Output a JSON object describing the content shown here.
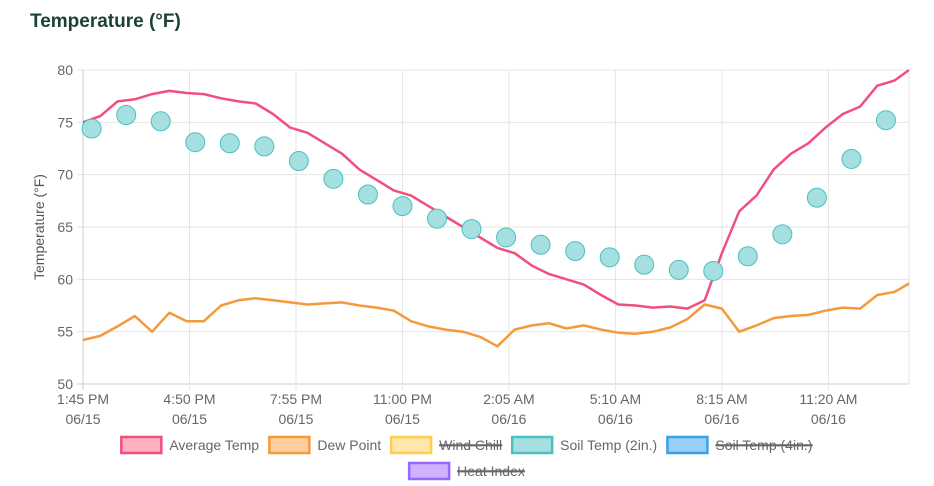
{
  "title": "Temperature (°F)",
  "chart_data": {
    "type": "line",
    "title": "Temperature (°F)",
    "ylabel": "Temperature (°F)",
    "xlabel": "",
    "ylim": [
      50,
      80
    ],
    "yticks": [
      "50",
      "55",
      "60",
      "65",
      "70",
      "75",
      "80"
    ],
    "xlim": [
      "06/15 13:45",
      "06/16 13:40"
    ],
    "xticks": [
      {
        "time": "1:45 PM",
        "date": "06/15",
        "at": "06/15 13:45"
      },
      {
        "time": "4:50 PM",
        "date": "06/15",
        "at": "06/15 16:50"
      },
      {
        "time": "7:55 PM",
        "date": "06/15",
        "at": "06/15 19:55"
      },
      {
        "time": "11:00 PM",
        "date": "06/15",
        "at": "06/15 23:00"
      },
      {
        "time": "2:05 AM",
        "date": "06/16",
        "at": "06/16 02:05"
      },
      {
        "time": "5:10 AM",
        "date": "06/16",
        "at": "06/16 05:10"
      },
      {
        "time": "8:15 AM",
        "date": "06/16",
        "at": "06/16 08:15"
      },
      {
        "time": "11:20 AM",
        "date": "06/16",
        "at": "06/16 11:20"
      }
    ],
    "grid": true,
    "legend_position": "bottom",
    "line_times": [
      "06/15 13:45",
      "06/15 14:15",
      "06/15 14:45",
      "06/15 15:15",
      "06/15 15:45",
      "06/15 16:15",
      "06/15 16:45",
      "06/15 17:15",
      "06/15 17:45",
      "06/15 18:15",
      "06/15 18:45",
      "06/15 19:15",
      "06/15 19:45",
      "06/15 20:15",
      "06/15 20:45",
      "06/15 21:15",
      "06/15 21:45",
      "06/15 22:15",
      "06/15 22:45",
      "06/15 23:15",
      "06/15 23:45",
      "06/16 00:15",
      "06/16 00:45",
      "06/16 01:15",
      "06/16 01:45",
      "06/16 02:15",
      "06/16 02:45",
      "06/16 03:15",
      "06/16 03:45",
      "06/16 04:15",
      "06/16 04:45",
      "06/16 05:15",
      "06/16 05:45",
      "06/16 06:15",
      "06/16 06:45",
      "06/16 07:15",
      "06/16 07:45",
      "06/16 08:15",
      "06/16 08:45",
      "06/16 09:15",
      "06/16 09:45",
      "06/16 10:15",
      "06/16 10:45",
      "06/16 11:15",
      "06/16 11:45",
      "06/16 12:15",
      "06/16 12:45",
      "06/16 13:15",
      "06/16 13:40"
    ],
    "soil_times": [
      "06/15 14:00",
      "06/15 15:00",
      "06/15 16:00",
      "06/15 17:00",
      "06/15 18:00",
      "06/15 19:00",
      "06/15 20:00",
      "06/15 21:00",
      "06/15 22:00",
      "06/15 23:00",
      "06/16 00:00",
      "06/16 01:00",
      "06/16 02:00",
      "06/16 03:00",
      "06/16 04:00",
      "06/16 05:00",
      "06/16 06:00",
      "06/16 07:00",
      "06/16 08:00",
      "06/16 09:00",
      "06/16 10:00",
      "06/16 11:00",
      "06/16 12:00",
      "06/16 13:00"
    ],
    "series": [
      {
        "name": "Average Temp",
        "color": "#f0507c",
        "fill": "#ffb1c1",
        "kind": "line",
        "hidden": false,
        "values": [
          75.0,
          75.6,
          77.0,
          77.2,
          77.7,
          78.0,
          77.8,
          77.7,
          77.3,
          77.0,
          76.8,
          75.8,
          74.5,
          74.0,
          73.0,
          72.0,
          70.5,
          69.5,
          68.5,
          68.0,
          67.0,
          66.0,
          65.0,
          64.0,
          63.0,
          62.5,
          61.3,
          60.5,
          60.0,
          59.5,
          58.5,
          57.6,
          57.5,
          57.3,
          57.4,
          57.2,
          58.0,
          62.5,
          66.5,
          68.0,
          70.5,
          72.0,
          73.0,
          74.5,
          75.8,
          76.5,
          78.5,
          79.0,
          80.0
        ]
      },
      {
        "name": "Dew Point",
        "color": "#f5993d",
        "fill": "#ffcf9f",
        "kind": "line",
        "hidden": false,
        "values": [
          54.2,
          54.6,
          55.5,
          56.5,
          55.0,
          56.8,
          56.0,
          56.0,
          57.5,
          58.0,
          58.2,
          58.0,
          57.8,
          57.6,
          57.7,
          57.8,
          57.5,
          57.3,
          57.0,
          56.0,
          55.5,
          55.2,
          55.0,
          54.5,
          53.6,
          55.2,
          55.6,
          55.8,
          55.3,
          55.6,
          55.2,
          54.9,
          54.8,
          55.0,
          55.4,
          56.2,
          57.6,
          57.2,
          55.0,
          55.6,
          56.3,
          56.5,
          56.6,
          57.0,
          57.3,
          57.2,
          58.5,
          58.8,
          59.6
        ]
      },
      {
        "name": "Wind Chill",
        "color": "#ffcd56",
        "fill": "#ffe6aa",
        "kind": "line",
        "hidden": true,
        "values": []
      },
      {
        "name": "Soil Temp (2in.)",
        "color": "#4bc0c0",
        "fill": "#a5dfdf",
        "kind": "points",
        "hidden": false,
        "values": [
          74.4,
          75.7,
          75.1,
          73.1,
          73.0,
          72.7,
          71.3,
          69.6,
          68.1,
          67.0,
          65.8,
          64.8,
          64.0,
          63.3,
          62.7,
          62.1,
          61.4,
          60.9,
          60.8,
          62.2,
          64.3,
          67.8,
          71.5,
          75.2
        ]
      },
      {
        "name": "Soil Temp (4in.)",
        "color": "#36a2eb",
        "fill": "#9ad0f5",
        "kind": "line",
        "hidden": true,
        "values": []
      },
      {
        "name": "Heat Index",
        "color": "#9966ff",
        "fill": "#ccb2ff",
        "kind": "line",
        "hidden": true,
        "values": []
      }
    ]
  }
}
